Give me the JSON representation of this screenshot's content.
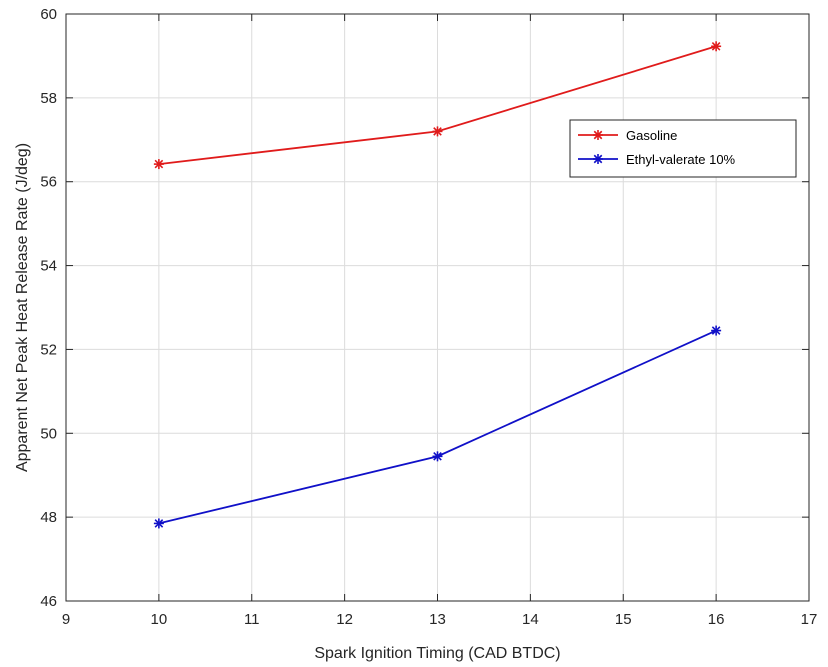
{
  "chart_data": {
    "type": "line",
    "title": "",
    "xlabel": "Spark Ignition Timing (CAD BTDC)",
    "ylabel": "Apparent Net Peak Heat Release Rate (J/deg)",
    "xlim": [
      9,
      17
    ],
    "ylim": [
      46,
      60
    ],
    "xticks": [
      "9",
      "10",
      "11",
      "12",
      "13",
      "14",
      "15",
      "16",
      "17"
    ],
    "yticks": [
      "46",
      "48",
      "50",
      "52",
      "54",
      "56",
      "58",
      "60"
    ],
    "grid": true,
    "legend_position": "top-right",
    "x": [
      10,
      13,
      16
    ],
    "series": [
      {
        "name": "Gasoline",
        "color": "#e01b1b",
        "values": [
          56.42,
          57.2,
          59.23
        ]
      },
      {
        "name": "Ethyl-valerate 10%",
        "color": "#1010c8",
        "values": [
          47.85,
          49.45,
          52.45
        ]
      }
    ]
  }
}
